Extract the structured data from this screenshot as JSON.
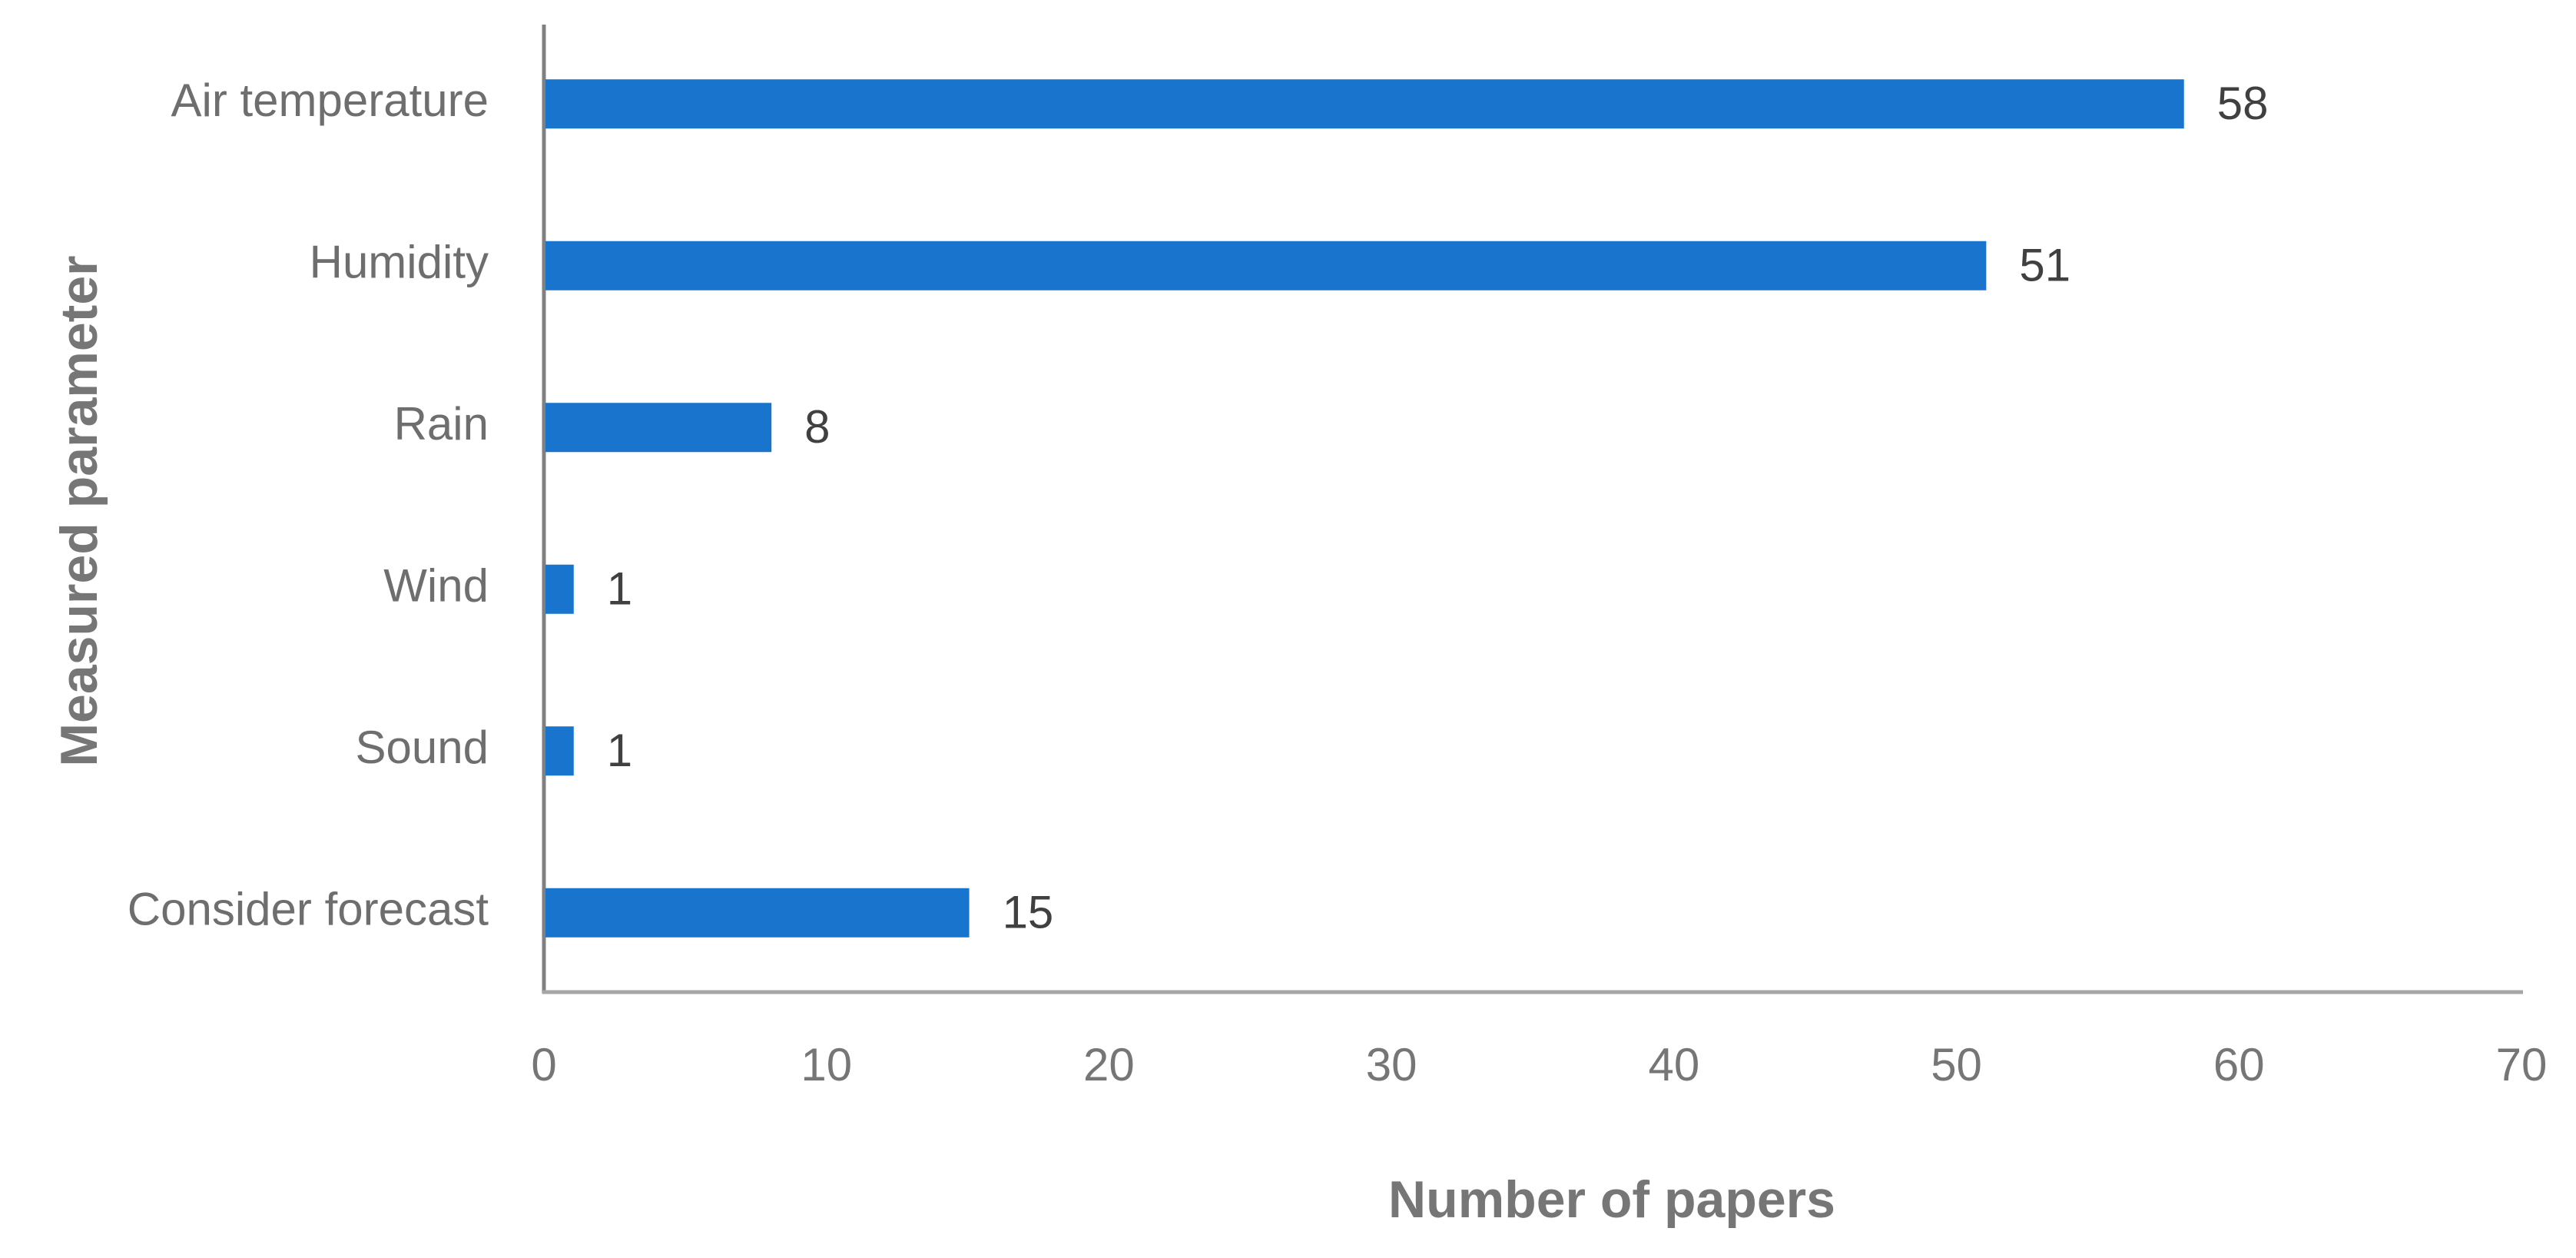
{
  "chart_data": {
    "type": "bar",
    "orientation": "horizontal",
    "x_label": "Number of papers",
    "y_label": "Measured parameter",
    "categories": [
      "Air temperature",
      "Humidity",
      "Rain",
      "Wind",
      "Sound",
      "Consider forecast"
    ],
    "values": [
      58,
      51,
      8,
      1,
      1,
      15
    ],
    "color": "#1874cd",
    "xlim": [
      0,
      70
    ],
    "xticks": [
      0,
      10,
      20,
      30,
      40,
      50,
      60,
      70
    ],
    "grid": false
  }
}
